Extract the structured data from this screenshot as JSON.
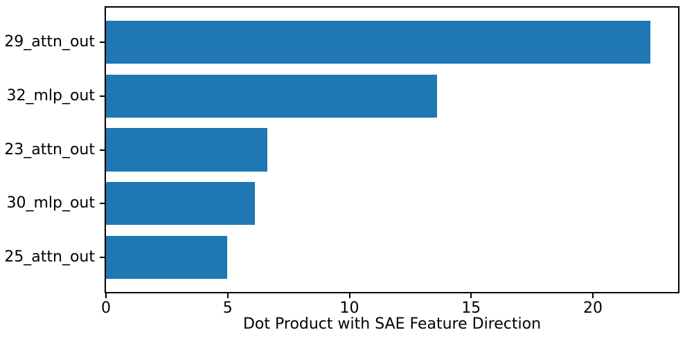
{
  "chart_data": {
    "type": "bar",
    "orientation": "horizontal",
    "title": "",
    "xlabel": "Dot Product with SAE Feature Direction",
    "ylabel": "",
    "categories": [
      "29_attn_out",
      "32_mlp_out",
      "23_attn_out",
      "30_mlp_out",
      "25_attn_out"
    ],
    "values": [
      22.37,
      13.61,
      6.63,
      6.12,
      4.99
    ],
    "xlim": [
      0,
      23.5
    ],
    "xticks": [
      0,
      5,
      10,
      15,
      20
    ],
    "xtick_labels": [
      "0",
      "5",
      "10",
      "15",
      "20"
    ],
    "grid": false,
    "legend": "none",
    "bar_color": "#1f77b4",
    "axis_color": "#000000",
    "background_color": "#ffffff"
  }
}
